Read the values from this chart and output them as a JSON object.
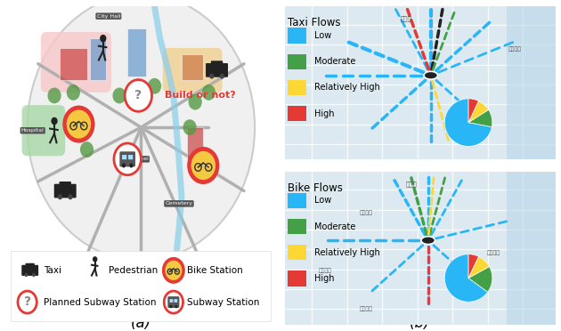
{
  "panel_a": {
    "label": "(a)",
    "build_or_not_text": "Build or not?",
    "build_or_not_color": "#cc0000",
    "legend_items": [
      {
        "icon": "taxi",
        "label": "Taxi"
      },
      {
        "icon": "pedestrian",
        "label": "Pedestrian"
      },
      {
        "icon": "bike",
        "label": "Bike Station"
      },
      {
        "icon": "planned_subway",
        "label": "Planned Subway Station"
      },
      {
        "icon": "subway",
        "label": "Subway Station"
      }
    ]
  },
  "panel_b": {
    "label": "(b)",
    "taxi_flows": {
      "title": "Taxi Flows",
      "legend": [
        {
          "color": "#29b6f6",
          "label": "Low"
        },
        {
          "color": "#43a047",
          "label": "Moderate"
        },
        {
          "color": "#fdd835",
          "label": "Relatively High"
        },
        {
          "color": "#e53935",
          "label": "High"
        }
      ],
      "pie_slices": [
        0.72,
        0.12,
        0.09,
        0.07
      ],
      "pie_colors": [
        "#29b6f6",
        "#43a047",
        "#fdd835",
        "#e53935"
      ],
      "map_bg": "#d0e8f0"
    },
    "bike_flows": {
      "title": "Bike Flows",
      "legend": [
        {
          "color": "#29b6f6",
          "label": "Low"
        },
        {
          "color": "#43a047",
          "label": "Moderate"
        },
        {
          "color": "#fdd835",
          "label": "Relatively High"
        },
        {
          "color": "#e53935",
          "label": "High"
        }
      ],
      "pie_slices": [
        0.65,
        0.18,
        0.1,
        0.07
      ],
      "pie_colors": [
        "#29b6f6",
        "#43a047",
        "#fdd835",
        "#e53935"
      ],
      "map_bg": "#dde8f0"
    }
  },
  "fig_bg": "#ffffff",
  "map_color_light": "#e8eef2",
  "map_road_color": "#ffffff",
  "map_water_color": "#aad4e8",
  "flow_colors": {
    "low": "#29b6f6",
    "moderate": "#43a047",
    "relatively_high": "#fdd835",
    "high": "#e53935"
  }
}
